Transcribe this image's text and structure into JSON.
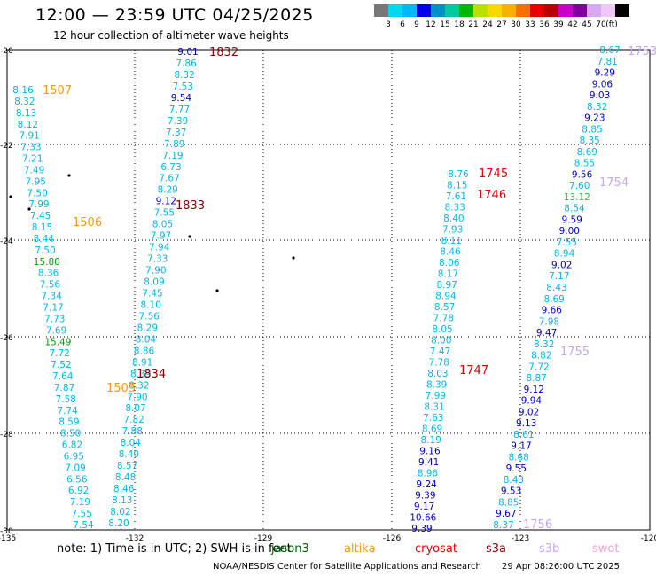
{
  "title": "12:00 — 23:59 UTC 04/25/2025",
  "subtitle": "12 hour collection of altimeter wave heights",
  "legend": {
    "unit": "(ft)",
    "colors": [
      "#777777",
      "#00d8f0",
      "#00b8f8",
      "#0000e8",
      "#0090c8",
      "#00c8a0",
      "#00b800",
      "#b8e000",
      "#f8d800",
      "#f8b000",
      "#f87000",
      "#e80000",
      "#b80000",
      "#c800c8",
      "#8000a0",
      "#d8a8f0",
      "#f0c8f8",
      "#000000"
    ],
    "labels": [
      "3",
      "6",
      "9",
      "12",
      "15",
      "18",
      "21",
      "24",
      "27",
      "30",
      "33",
      "36",
      "39",
      "42",
      "45",
      "70"
    ]
  },
  "map": {
    "lon_labels": [
      "-135",
      "-132",
      "-129",
      "-126",
      "-123",
      "-120"
    ],
    "lat_labels": [
      "-20",
      "-22",
      "-24",
      "-26",
      "-28",
      "-30"
    ]
  },
  "tracks": [
    {
      "id": "t1",
      "values": [
        "9.01",
        "7.86",
        "8.32",
        "7.53",
        "9.54",
        "7.77",
        "7.39",
        "7.37",
        "7.89",
        "7.19",
        "6.73",
        "7.67",
        "8.29",
        "9.12",
        "7.55",
        "8.05",
        "7.97",
        "7.94",
        "7.33",
        "7.90",
        "8.09",
        "7.45",
        "8.10",
        "7.56",
        "8.29",
        "8.04",
        "8.86",
        "8.91",
        "8.39",
        "8.32",
        "7.90",
        "8.07",
        "7.82",
        "7.88",
        "8.04",
        "8.40",
        "8.57",
        "8.48",
        "8.46",
        "8.13",
        "8.02",
        "8.20"
      ]
    },
    {
      "id": "t2",
      "values": [
        "8.16",
        "8.32",
        "8.13",
        "8.12",
        "7.91",
        "7.33",
        "7.21",
        "7.49",
        "7.95",
        "7.50",
        "7.99",
        "7.45",
        "8.15",
        "8.44",
        "7.50",
        "15.80",
        "8.36",
        "7.56",
        "7.34",
        "7.17",
        "7.73",
        "7.69",
        "15.49",
        "7.72",
        "7.52",
        "7.64",
        "7.87",
        "7.58",
        "7.74",
        "8.59",
        "8.50",
        "6.82",
        "6.95",
        "7.09",
        "6.56",
        "6.92",
        "7.19",
        "7.55",
        "7.54"
      ]
    },
    {
      "id": "t3",
      "values": [
        "8.76",
        "8.15",
        "7.61",
        "8.33",
        "8.40",
        "7.93",
        "8.11",
        "8.46",
        "8.06",
        "8.17",
        "8.97",
        "8.94",
        "8.57",
        "7.78",
        "8.05",
        "8.00",
        "7.47",
        "7.78",
        "8.03",
        "8.39",
        "7.99",
        "8.31",
        "7.63",
        "8.69",
        "8.19",
        "9.16",
        "9.41",
        "8.96",
        "9.24",
        "9.39",
        "9.17",
        "10.66",
        "9.39"
      ]
    },
    {
      "id": "t4",
      "values": [
        "8.67",
        "7.81",
        "9.29",
        "9.06",
        "9.03",
        "8.32",
        "9.23",
        "8.85",
        "8.35",
        "8.69",
        "8.55",
        "9.56",
        "7.60",
        "13.12",
        "8.54",
        "9.59",
        "9.00",
        "7.55",
        "8.94",
        "9.02",
        "7.17",
        "8.43",
        "8.69",
        "9.66",
        "7.98",
        "9.47",
        "8.32",
        "8.82",
        "7.72",
        "8.87",
        "9.12",
        "9.94",
        "9.02",
        "9.13",
        "8.61",
        "9.17",
        "8.68",
        "9.55",
        "8.43",
        "9.53",
        "8.85",
        "9.67",
        "8.37"
      ]
    }
  ],
  "times": [
    {
      "id": "t1a",
      "text": "1832",
      "color": "#8b0000"
    },
    {
      "id": "t1b",
      "text": "1833",
      "color": "#8b0000"
    },
    {
      "id": "t1c",
      "text": "1834",
      "color": "#8b0000"
    },
    {
      "id": "t2a",
      "text": "1507",
      "color": "#f39c12"
    },
    {
      "id": "t2b",
      "text": "1506",
      "color": "#f39c12"
    },
    {
      "id": "t2c",
      "text": "1505",
      "color": "#f39c12"
    },
    {
      "id": "t3a",
      "text": "1745",
      "color": "#e00000"
    },
    {
      "id": "t3b",
      "text": "1746",
      "color": "#e00000"
    },
    {
      "id": "t3c",
      "text": "1747",
      "color": "#e00000"
    },
    {
      "id": "t4a",
      "text": "1753",
      "color": "#c8a8ec"
    },
    {
      "id": "t4b",
      "text": "1754",
      "color": "#c8a8ec"
    },
    {
      "id": "t4c",
      "text": "1755",
      "color": "#c8a8ec"
    },
    {
      "id": "t4d",
      "text": "1756",
      "color": "#c8a8ec"
    }
  ],
  "footer": {
    "note": "note: 1) Time is in UTC; 2) SWH is in feet",
    "satellites": [
      {
        "name": "jason3",
        "color": "#006400"
      },
      {
        "name": "altika",
        "color": "#f39c12"
      },
      {
        "name": "cryosat",
        "color": "#e00000"
      },
      {
        "name": "s3a",
        "color": "#8b0000"
      },
      {
        "name": "s3b",
        "color": "#c8a8ec"
      },
      {
        "name": "swot",
        "color": "#f0a0e0"
      }
    ],
    "credit": "NOAA/NESDIS Center for Satellite Applications and Research",
    "generated": "29 Apr 08:26:00 UTC 2025"
  }
}
